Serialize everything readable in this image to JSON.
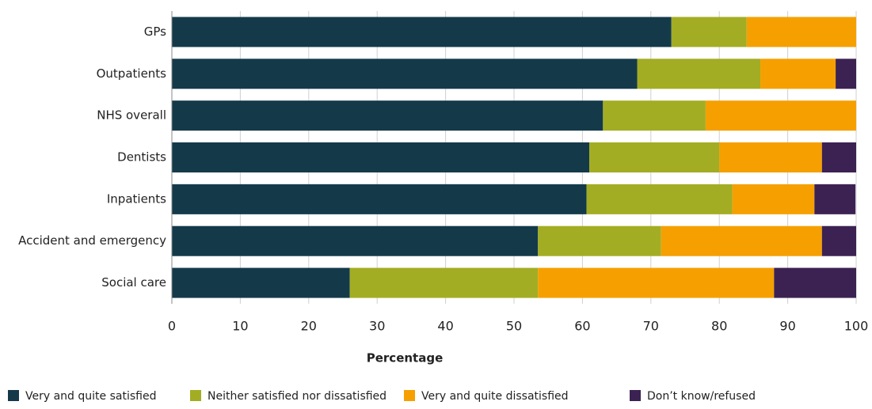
{
  "chart_data": {
    "type": "stacked-bar-horizontal",
    "x_label": "Percentage",
    "categories": [
      "GPs",
      "Outpatients",
      "NHS overall",
      "Dentists",
      "Inpatients",
      "Accident and emergency",
      "Social care"
    ],
    "series": [
      {
        "name": "Very and quite satisfied",
        "color": "#143a4a",
        "values": [
          73,
          68,
          63,
          61,
          60.6,
          53.5,
          26
        ]
      },
      {
        "name": "Neither satisfied nor dissatisfied",
        "color": "#a3ad23",
        "values": [
          11,
          18,
          15,
          19,
          21.3,
          18,
          27.5
        ]
      },
      {
        "name": "Very and quite dissatisfied",
        "color": "#f5a000",
        "values": [
          16,
          11,
          22,
          15,
          12,
          23.5,
          34.5
        ]
      },
      {
        "name": "Don’t know/refused",
        "color": "#3c2252",
        "values": [
          0,
          3,
          0,
          5,
          6,
          5,
          12
        ]
      }
    ],
    "xlim": [
      0,
      100
    ],
    "xticks": [
      0,
      10,
      20,
      30,
      40,
      50,
      60,
      70,
      80,
      90,
      100
    ],
    "grid": true,
    "legend": "bottom"
  }
}
